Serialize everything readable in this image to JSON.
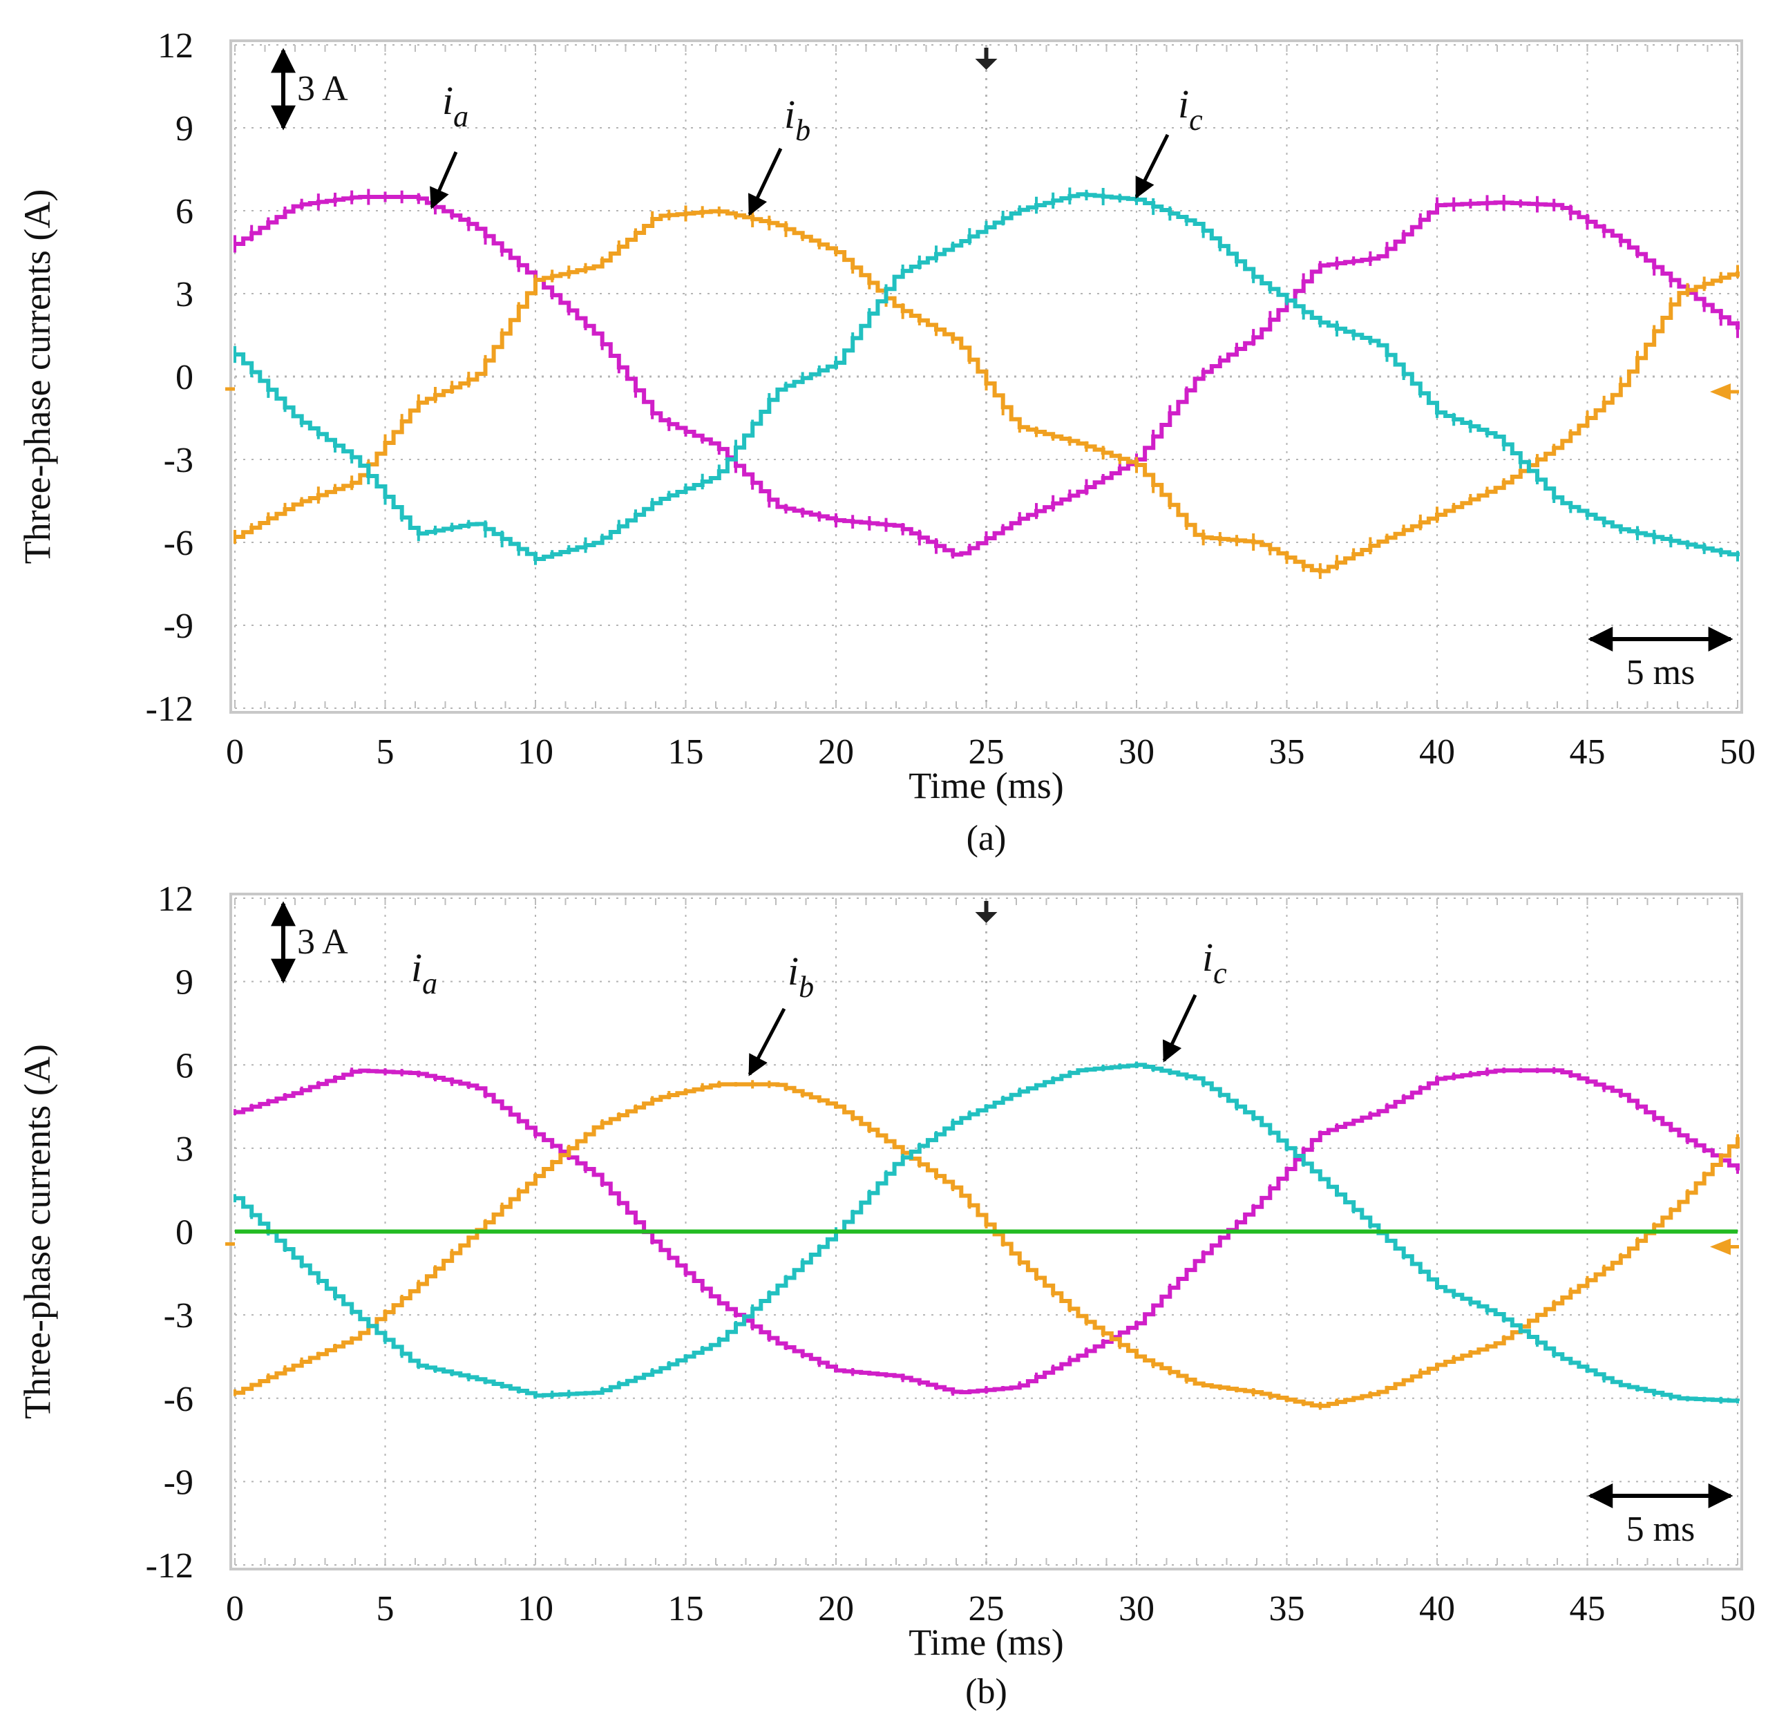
{
  "colors": {
    "ia": "#d01fc8",
    "ib": "#f0a020",
    "ic": "#22c0c0",
    "zero": "#22bb22",
    "grid": "#b4b4b4",
    "plot_bg": "#ffffff"
  },
  "chart_data": [
    {
      "type": "line",
      "caption": "(a)",
      "xlabel": "Time (ms)",
      "ylabel": "Three-phase currents  (A)",
      "xlim": [
        0,
        50
      ],
      "ylim": [
        -12,
        12
      ],
      "xticks": [
        "0",
        "5",
        "10",
        "15",
        "20",
        "25",
        "30",
        "35",
        "40",
        "45",
        "50"
      ],
      "yticks": [
        "12",
        "9",
        "6",
        "3",
        "0",
        "-3",
        "-6",
        "-9",
        "-12"
      ],
      "grid": true,
      "current_scale_label": "3 A",
      "time_scale_label": "5 ms",
      "series": [
        {
          "name": "i",
          "subscript": "a",
          "color_key": "ia",
          "x": [
            0,
            2,
            4,
            6,
            8,
            10,
            12,
            14,
            16,
            18,
            20,
            22,
            24,
            26,
            28,
            30,
            32,
            34,
            36,
            38,
            40,
            42,
            44,
            46,
            48,
            50
          ],
          "y": [
            4.8,
            6.2,
            6.5,
            6.5,
            5.4,
            3.5,
            1.5,
            -1.5,
            -2.5,
            -4.7,
            -5.2,
            -5.4,
            -6.5,
            -5.2,
            -4.2,
            -3.0,
            0.0,
            1.5,
            4.0,
            4.3,
            6.2,
            6.3,
            6.2,
            5.0,
            3.3,
            1.7
          ]
        },
        {
          "name": "i",
          "subscript": "b",
          "color_key": "ib",
          "x": [
            0,
            2,
            4,
            6,
            8,
            10,
            12,
            14,
            16,
            18,
            20,
            22,
            24,
            26,
            28,
            30,
            32,
            34,
            36,
            38,
            40,
            42,
            44,
            46,
            48,
            50
          ],
          "y": [
            -5.8,
            -4.6,
            -3.8,
            -1.0,
            0.0,
            3.5,
            4.0,
            5.8,
            6.0,
            5.5,
            4.5,
            2.5,
            1.3,
            -1.8,
            -2.4,
            -3.2,
            -5.8,
            -6.0,
            -7.1,
            -6.0,
            -5.0,
            -4.0,
            -2.5,
            -0.5,
            3.0,
            3.8
          ]
        },
        {
          "name": "i",
          "subscript": "c",
          "color_key": "ic",
          "x": [
            0,
            2,
            4,
            6,
            8,
            10,
            12,
            14,
            16,
            18,
            20,
            22,
            24,
            26,
            28,
            30,
            32,
            34,
            36,
            38,
            40,
            42,
            44,
            46,
            48,
            50
          ],
          "y": [
            0.8,
            -1.5,
            -3.0,
            -5.7,
            -5.3,
            -6.6,
            -6.0,
            -4.5,
            -3.6,
            -0.5,
            0.5,
            3.7,
            4.8,
            6.0,
            6.6,
            6.4,
            5.5,
            3.5,
            2.0,
            1.2,
            -1.3,
            -2.2,
            -4.5,
            -5.5,
            -6.0,
            -6.5
          ]
        }
      ]
    },
    {
      "type": "line",
      "caption": "(b)",
      "xlabel": "Time (ms)",
      "ylabel": "Three-phase currents  (A)",
      "xlim": [
        0,
        50
      ],
      "ylim": [
        -12,
        12
      ],
      "xticks": [
        "0",
        "5",
        "10",
        "15",
        "20",
        "25",
        "30",
        "35",
        "40",
        "45",
        "50"
      ],
      "yticks": [
        "12",
        "9",
        "6",
        "3",
        "0",
        "-3",
        "-6",
        "-9",
        "-12"
      ],
      "grid": true,
      "current_scale_label": "3 A",
      "time_scale_label": "5 ms",
      "series": [
        {
          "name": "i",
          "subscript": "a",
          "color_key": "ia",
          "x": [
            0,
            2,
            4,
            6,
            8,
            10,
            12,
            14,
            16,
            18,
            20,
            22,
            24,
            26,
            28,
            30,
            32,
            34,
            36,
            38,
            40,
            42,
            44,
            46,
            48,
            50
          ],
          "y": [
            4.3,
            5.0,
            5.8,
            5.7,
            5.2,
            3.5,
            2.0,
            -0.5,
            -2.5,
            -4.0,
            -5.0,
            -5.2,
            -5.8,
            -5.6,
            -4.5,
            -3.3,
            -1.0,
            1.0,
            3.5,
            4.3,
            5.5,
            5.8,
            5.8,
            5.0,
            3.5,
            2.2
          ]
        },
        {
          "name": "i",
          "subscript": "b",
          "color_key": "ib",
          "x": [
            0,
            2,
            4,
            6,
            8,
            10,
            12,
            14,
            16,
            18,
            20,
            22,
            24,
            26,
            28,
            30,
            32,
            34,
            36,
            38,
            40,
            42,
            44,
            46,
            48,
            50
          ],
          "y": [
            -5.8,
            -4.8,
            -3.8,
            -2.0,
            0.0,
            2.0,
            3.8,
            4.8,
            5.3,
            5.3,
            4.5,
            3.0,
            1.5,
            -1.0,
            -3.0,
            -4.5,
            -5.5,
            -5.8,
            -6.3,
            -5.8,
            -4.8,
            -4.0,
            -2.5,
            -1.0,
            1.0,
            3.4
          ]
        },
        {
          "name": "i",
          "subscript": "c",
          "color_key": "ic",
          "x": [
            0,
            2,
            4,
            6,
            8,
            10,
            12,
            14,
            16,
            18,
            20,
            22,
            24,
            26,
            28,
            30,
            32,
            34,
            36,
            38,
            40,
            42,
            44,
            46,
            48,
            50
          ],
          "y": [
            1.2,
            -1.0,
            -3.0,
            -4.8,
            -5.3,
            -5.9,
            -5.8,
            -5.0,
            -4.0,
            -2.0,
            0.0,
            2.5,
            4.0,
            5.0,
            5.8,
            6.0,
            5.5,
            4.0,
            2.0,
            0.0,
            -2.0,
            -3.0,
            -4.5,
            -5.5,
            -6.0,
            -6.1
          ]
        },
        {
          "name": "",
          "subscript": "",
          "color_key": "zero",
          "x": [
            0,
            50
          ],
          "y": [
            0,
            0
          ]
        }
      ]
    }
  ]
}
